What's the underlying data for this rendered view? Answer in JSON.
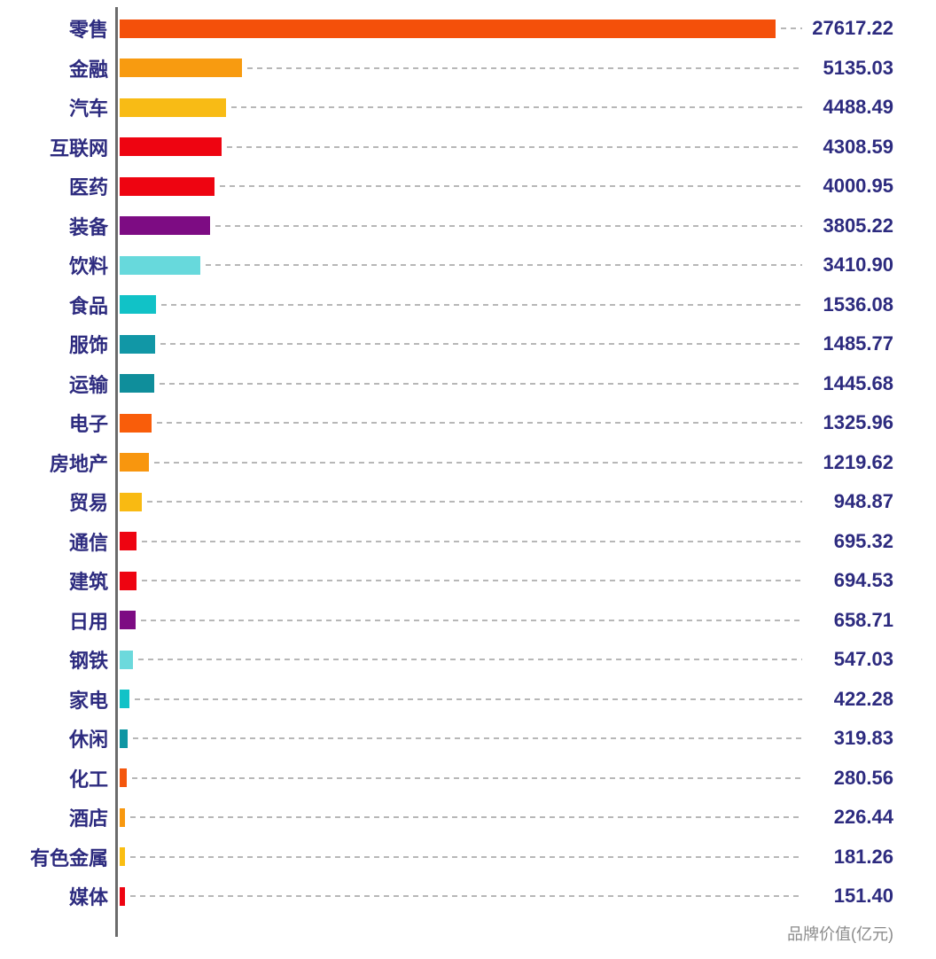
{
  "chart_data": {
    "type": "bar",
    "orientation": "horizontal",
    "xlabel": "品牌价值(亿元)",
    "xlim": [
      0,
      27617.22
    ],
    "grid": false,
    "legend": false,
    "value_labels_position": "right-aligned column",
    "leader_line_style": "gray dashed",
    "categories": [
      "零售",
      "金融",
      "汽车",
      "互联网",
      "医药",
      "装备",
      "饮料",
      "食品",
      "服饰",
      "运输",
      "电子",
      "房地产",
      "贸易",
      "通信",
      "建筑",
      "日用",
      "钢铁",
      "家电",
      "休闲",
      "化工",
      "酒店",
      "有色金属",
      "媒体"
    ],
    "values": [
      27617.22,
      5135.03,
      4488.49,
      4308.59,
      4000.95,
      3805.22,
      3410.9,
      1536.08,
      1485.77,
      1445.68,
      1325.96,
      1219.62,
      948.87,
      695.32,
      694.53,
      658.71,
      547.03,
      422.28,
      319.83,
      280.56,
      226.44,
      181.26,
      151.4
    ],
    "value_labels": [
      "27617.22",
      "5135.03",
      "4488.49",
      "4308.59",
      "4000.95",
      "3805.22",
      "3410.90",
      "1536.08",
      "1485.77",
      "1445.68",
      "1325.96",
      "1219.62",
      "948.87",
      "695.32",
      "694.53",
      "658.71",
      "547.03",
      "422.28",
      "319.83",
      "280.56",
      "226.44",
      "181.26",
      "151.40"
    ],
    "bar_colors": [
      "#f4500a",
      "#f89b10",
      "#f8bb15",
      "#ee0411",
      "#ee0411",
      "#7d0c83",
      "#67d9dc",
      "#11c2c7",
      "#1197a6",
      "#0f8e9b",
      "#f95d0a",
      "#f8960e",
      "#f9ba12",
      "#ee0411",
      "#ee0411",
      "#7d0c83",
      "#6cd9dc",
      "#11c2c7",
      "#0e96a3",
      "#f4570d",
      "#f8980f",
      "#fabe12",
      "#ee0411"
    ]
  },
  "colors": {
    "category_text": "#2d2b7f",
    "value_text": "#2d2b7f",
    "axis_line": "#6b6b6b",
    "leader_dash": "#b7b7b7",
    "footer_text": "#8b8b8b",
    "background": "#ffffff"
  }
}
